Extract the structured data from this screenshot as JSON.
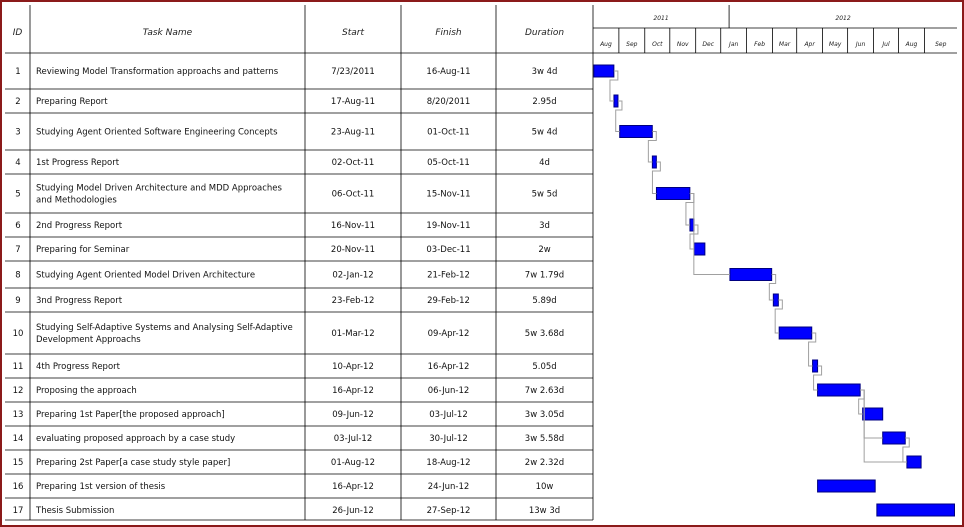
{
  "columns": {
    "id": "ID",
    "task": "Task Name",
    "start": "Start",
    "finish": "Finish",
    "duration": "Duration"
  },
  "timescale": {
    "years": [
      {
        "label": "2011",
        "from": "2011-07-01",
        "to": "2012-01-01"
      },
      {
        "label": "2012",
        "from": "2012-01-01",
        "to": "2012-10-01"
      }
    ],
    "months": [
      {
        "label": "Aug",
        "from": "2011-07-22"
      },
      {
        "label": "Sep",
        "from": "2011-08-22"
      },
      {
        "label": "Oct",
        "from": "2011-09-22"
      },
      {
        "label": "Nov",
        "from": "2011-10-22"
      },
      {
        "label": "Dec",
        "from": "2011-11-22"
      },
      {
        "label": "Jan",
        "from": "2011-12-22"
      },
      {
        "label": "Feb",
        "from": "2012-01-22"
      },
      {
        "label": "Mar",
        "from": "2012-02-22"
      },
      {
        "label": "Apr",
        "from": "2012-03-22"
      },
      {
        "label": "May",
        "from": "2012-04-22"
      },
      {
        "label": "Jun",
        "from": "2012-05-22"
      },
      {
        "label": "Jul",
        "from": "2012-06-22"
      },
      {
        "label": "Aug",
        "from": "2012-07-22"
      },
      {
        "label": "Sep",
        "from": "2012-08-22"
      }
    ],
    "range": [
      "2011-07-22",
      "2012-09-30"
    ]
  },
  "colors": {
    "bar": "#0000ff",
    "bar_border": "#000080",
    "grid": "#000000",
    "bg": "#ffffff",
    "frame": "#8b1a1a",
    "link": "#a0a0a0"
  },
  "tasks": [
    {
      "id": "1",
      "name": [
        "Reviewing Model Transformation approachs and patterns"
      ],
      "start": "7/23/2011",
      "finish": "16-Aug-11",
      "duration": "3w 4d"
    },
    {
      "id": "2",
      "name": [
        "Preparing Report"
      ],
      "start": "17-Aug-11",
      "finish": "8/20/2011",
      "duration": "2.95d"
    },
    {
      "id": "3",
      "name": [
        "Studying Agent Oriented Software Engineering Concepts"
      ],
      "start": "23-Aug-11",
      "finish": "01-Oct-11",
      "duration": "5w 4d"
    },
    {
      "id": "4",
      "name": [
        "1st Progress Report"
      ],
      "start": "02-Oct-11",
      "finish": "05-Oct-11",
      "duration": "4d"
    },
    {
      "id": "5",
      "name": [
        "Studying Model Driven Architecture and MDD Approaches",
        "and Methodologies"
      ],
      "start": "06-Oct-11",
      "finish": "15-Nov-11",
      "duration": "5w 5d"
    },
    {
      "id": "6",
      "name": [
        "2nd Progress Report"
      ],
      "start": "16-Nov-11",
      "finish": "19-Nov-11",
      "duration": "3d"
    },
    {
      "id": "7",
      "name": [
        "Preparing for Seminar"
      ],
      "start": "20-Nov-11",
      "finish": "03-Dec-11",
      "duration": "2w"
    },
    {
      "id": "8",
      "name": [
        "Studying Agent Oriented Model Driven Architecture"
      ],
      "start": "02-Jan-12",
      "finish": "21-Feb-12",
      "duration": "7w 1.79d"
    },
    {
      "id": "9",
      "name": [
        "3nd Progress Report"
      ],
      "start": "23-Feb-12",
      "finish": "29-Feb-12",
      "duration": "5.89d"
    },
    {
      "id": "10",
      "name": [
        "Studying Self-Adaptive Systems and Analysing Self-Adaptive",
        "Development Approachs"
      ],
      "start": "01-Mar-12",
      "finish": "09-Apr-12",
      "duration": "5w 3.68d"
    },
    {
      "id": "11",
      "name": [
        "4th Progress Report"
      ],
      "start": "10-Apr-12",
      "finish": "16-Apr-12",
      "duration": "5.05d"
    },
    {
      "id": "12",
      "name": [
        "Proposing the approach"
      ],
      "start": "16-Apr-12",
      "finish": "06-Jun-12",
      "duration": "7w 2.63d"
    },
    {
      "id": "13",
      "name": [
        "Preparing 1st Paper[the proposed approach]"
      ],
      "start": "09-Jun-12",
      "finish": "03-Jul-12",
      "duration": "3w 3.05d"
    },
    {
      "id": "14",
      "name": [
        "evaluating proposed approach by a case study"
      ],
      "start": "03-Jul-12",
      "finish": "30-Jul-12",
      "duration": "3w 5.58d"
    },
    {
      "id": "15",
      "name": [
        "Preparing 2st Paper[a case study style paper]"
      ],
      "start": "01-Aug-12",
      "finish": "18-Aug-12",
      "duration": "2w 2.32d"
    },
    {
      "id": "16",
      "name": [
        "Preparing 1st version of thesis"
      ],
      "start": "16-Apr-12",
      "finish": "24-Jun-12",
      "duration": "10w"
    },
    {
      "id": "17",
      "name": [
        "Thesis Submission"
      ],
      "start": "26-Jun-12",
      "finish": "27-Sep-12",
      "duration": "13w 3d"
    }
  ],
  "chart_data": {
    "type": "gantt",
    "x_range": [
      "2011-07-22",
      "2012-09-30"
    ],
    "bars": [
      {
        "task": "1",
        "start": "2011-07-23",
        "end": "2011-08-16"
      },
      {
        "task": "2",
        "start": "2011-08-17",
        "end": "2011-08-20"
      },
      {
        "task": "3",
        "start": "2011-08-23",
        "end": "2011-10-01"
      },
      {
        "task": "4",
        "start": "2011-10-02",
        "end": "2011-10-05"
      },
      {
        "task": "5",
        "start": "2011-10-06",
        "end": "2011-11-15"
      },
      {
        "task": "6",
        "start": "2011-11-16",
        "end": "2011-11-19"
      },
      {
        "task": "7",
        "start": "2011-11-20",
        "end": "2011-12-03"
      },
      {
        "task": "8",
        "start": "2012-01-02",
        "end": "2012-02-21"
      },
      {
        "task": "9",
        "start": "2012-02-23",
        "end": "2012-02-29"
      },
      {
        "task": "10",
        "start": "2012-03-01",
        "end": "2012-04-09"
      },
      {
        "task": "11",
        "start": "2012-04-10",
        "end": "2012-04-16"
      },
      {
        "task": "12",
        "start": "2012-04-16",
        "end": "2012-06-06"
      },
      {
        "task": "13",
        "start": "2012-06-09",
        "end": "2012-07-03"
      },
      {
        "task": "14",
        "start": "2012-07-03",
        "end": "2012-07-30"
      },
      {
        "task": "15",
        "start": "2012-08-01",
        "end": "2012-08-18"
      },
      {
        "task": "16",
        "start": "2012-04-16",
        "end": "2012-06-24"
      },
      {
        "task": "17",
        "start": "2012-06-26",
        "end": "2012-09-27"
      }
    ],
    "links": [
      {
        "from": "1",
        "to": "2"
      },
      {
        "from": "2",
        "to": "3"
      },
      {
        "from": "3",
        "to": "4"
      },
      {
        "from": "4",
        "to": "5"
      },
      {
        "from": "5",
        "to": "6"
      },
      {
        "from": "6",
        "to": "7"
      },
      {
        "from": "5",
        "to": "8"
      },
      {
        "from": "8",
        "to": "9"
      },
      {
        "from": "9",
        "to": "10"
      },
      {
        "from": "10",
        "to": "11"
      },
      {
        "from": "11",
        "to": "12"
      },
      {
        "from": "12",
        "to": "13"
      },
      {
        "from": "12",
        "to": "14"
      },
      {
        "from": "14",
        "to": "15"
      },
      {
        "from": "12",
        "to": "15"
      }
    ]
  }
}
